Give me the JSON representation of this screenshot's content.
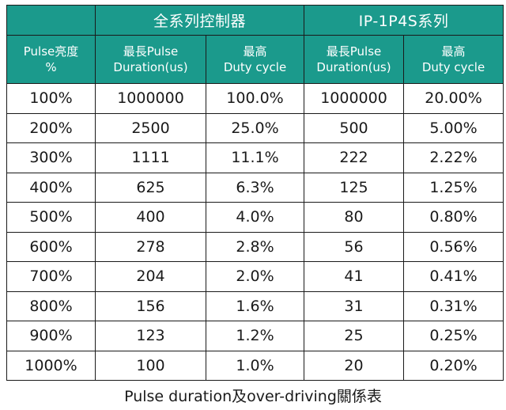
{
  "table": {
    "groups": {
      "all_series": "全系列控制器",
      "ip_series": "IP-1P4S系列"
    },
    "subheaders": {
      "pulse_brightness_line1": "Pulse亮度",
      "pulse_brightness_line2": "%",
      "all_duration_line1": "最長Pulse",
      "all_duration_line2": "Duration(us)",
      "all_duty_line1": "最高",
      "all_duty_line2": "Duty cycle",
      "ip_duration_line1": "最長Pulse",
      "ip_duration_line2": "Duration(us)",
      "ip_duty_line1": "最高",
      "ip_duty_line2": "Duty cycle"
    },
    "rows": [
      {
        "pulse": "100%",
        "all_duration": "1000000",
        "all_duty": "100.0%",
        "ip_duration": "1000000",
        "ip_duty": "20.00%"
      },
      {
        "pulse": "200%",
        "all_duration": "2500",
        "all_duty": "25.0%",
        "ip_duration": "500",
        "ip_duty": "5.00%"
      },
      {
        "pulse": "300%",
        "all_duration": "1111",
        "all_duty": "11.1%",
        "ip_duration": "222",
        "ip_duty": "2.22%"
      },
      {
        "pulse": "400%",
        "all_duration": "625",
        "all_duty": "6.3%",
        "ip_duration": "125",
        "ip_duty": "1.25%"
      },
      {
        "pulse": "500%",
        "all_duration": "400",
        "all_duty": "4.0%",
        "ip_duration": "80",
        "ip_duty": "0.80%"
      },
      {
        "pulse": "600%",
        "all_duration": "278",
        "all_duty": "2.8%",
        "ip_duration": "56",
        "ip_duty": "0.56%"
      },
      {
        "pulse": "700%",
        "all_duration": "204",
        "all_duty": "2.0%",
        "ip_duration": "41",
        "ip_duty": "0.41%"
      },
      {
        "pulse": "800%",
        "all_duration": "156",
        "all_duty": "1.6%",
        "ip_duration": "31",
        "ip_duty": "0.31%"
      },
      {
        "pulse": "900%",
        "all_duration": "123",
        "all_duty": "1.2%",
        "ip_duration": "25",
        "ip_duty": "0.25%"
      },
      {
        "pulse": "1000%",
        "all_duration": "100",
        "all_duty": "1.0%",
        "ip_duration": "20",
        "ip_duty": "0.20%"
      }
    ],
    "header_color": "#1b9a8c",
    "header_text_color": "#ffffff"
  },
  "caption": "Pulse duration及over-driving關係表"
}
